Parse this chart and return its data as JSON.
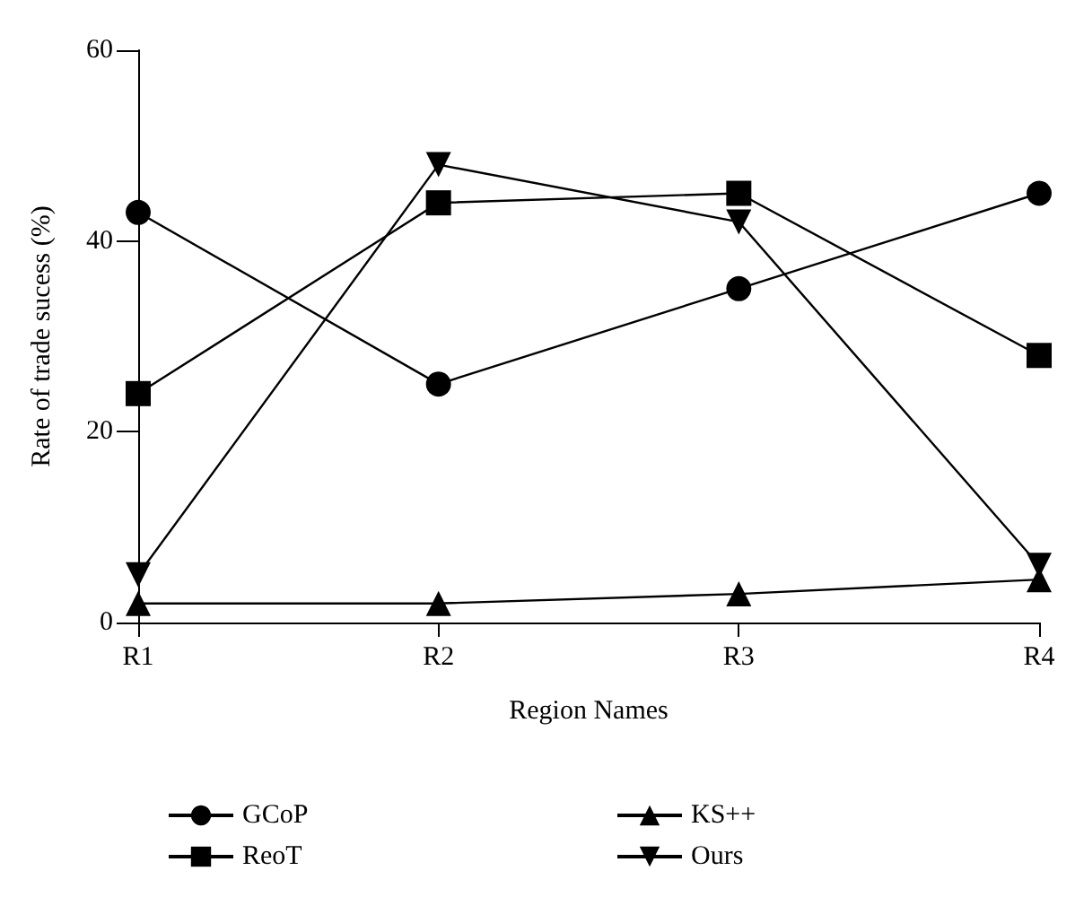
{
  "chart_data": {
    "type": "line",
    "xlabel": "Region Names",
    "ylabel": "Rate of trade sucess (%)",
    "categories": [
      "R1",
      "R2",
      "R3",
      "R4"
    ],
    "series": [
      {
        "name": "GCoP",
        "color": "#000000",
        "marker": "circle",
        "values": [
          43,
          25,
          35,
          45
        ]
      },
      {
        "name": "ReoT",
        "color": "#000000",
        "marker": "square",
        "values": [
          24,
          44,
          45,
          28
        ]
      },
      {
        "name": "KS++",
        "color": "#000000",
        "marker": "triangle",
        "values": [
          2,
          2,
          3,
          4.5
        ]
      },
      {
        "name": "Ours",
        "color": "#000000",
        "marker": "triangle-down",
        "values": [
          5,
          48,
          42,
          6
        ]
      }
    ],
    "ylim": [
      0,
      60
    ],
    "yticks": [
      0,
      20,
      40,
      60
    ],
    "grid": false,
    "legend": "bottom",
    "line_style": "solid"
  }
}
